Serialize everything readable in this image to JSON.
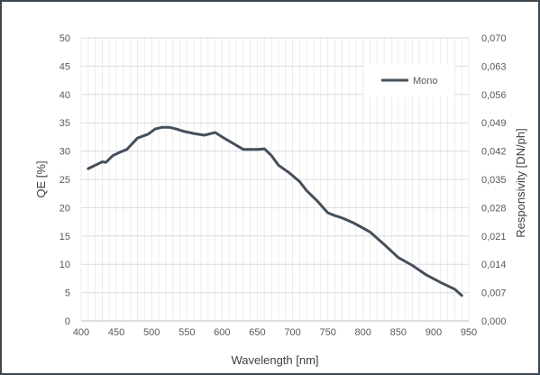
{
  "chart_data": {
    "type": "line",
    "title": "",
    "xlabel": "Wavelength [nm]",
    "ylabel": "QE [%]",
    "y2label": "Responsivity [DN/ph]",
    "xlim": [
      400,
      950
    ],
    "ylim": [
      0,
      50
    ],
    "y2lim": [
      0,
      0.07
    ],
    "xticks": [
      "400",
      "450",
      "500",
      "550",
      "600",
      "650",
      "700",
      "750",
      "800",
      "850",
      "900",
      "950"
    ],
    "yticks": [
      "0",
      "5",
      "10",
      "15",
      "20",
      "25",
      "30",
      "35",
      "40",
      "45",
      "50"
    ],
    "y2ticks": [
      "0,000",
      "0,007",
      "0,014",
      "0,021",
      "0,028",
      "0,035",
      "0,042",
      "0,049",
      "0,056",
      "0,063",
      "0,070"
    ],
    "grid": true,
    "legend_position": "top-right",
    "series": [
      {
        "name": "Mono",
        "color": "#44505c",
        "x": [
          410,
          420,
          430,
          435,
          445,
          455,
          465,
          480,
          495,
          505,
          515,
          525,
          535,
          545,
          560,
          575,
          590,
          600,
          615,
          630,
          640,
          650,
          660,
          670,
          680,
          695,
          710,
          720,
          735,
          750,
          760,
          770,
          785,
          800,
          810,
          830,
          850,
          870,
          890,
          910,
          930,
          940
        ],
        "y": [
          26.9,
          27.5,
          28.1,
          28.0,
          29.2,
          29.8,
          30.3,
          32.3,
          33.0,
          33.9,
          34.2,
          34.2,
          33.9,
          33.5,
          33.1,
          32.8,
          33.3,
          32.5,
          31.4,
          30.3,
          30.3,
          30.3,
          30.4,
          29.2,
          27.5,
          26.2,
          24.6,
          23.0,
          21.2,
          19.1,
          18.6,
          18.2,
          17.4,
          16.4,
          15.7,
          13.5,
          11.2,
          9.8,
          8.1,
          6.8,
          5.6,
          4.5
        ]
      }
    ]
  }
}
